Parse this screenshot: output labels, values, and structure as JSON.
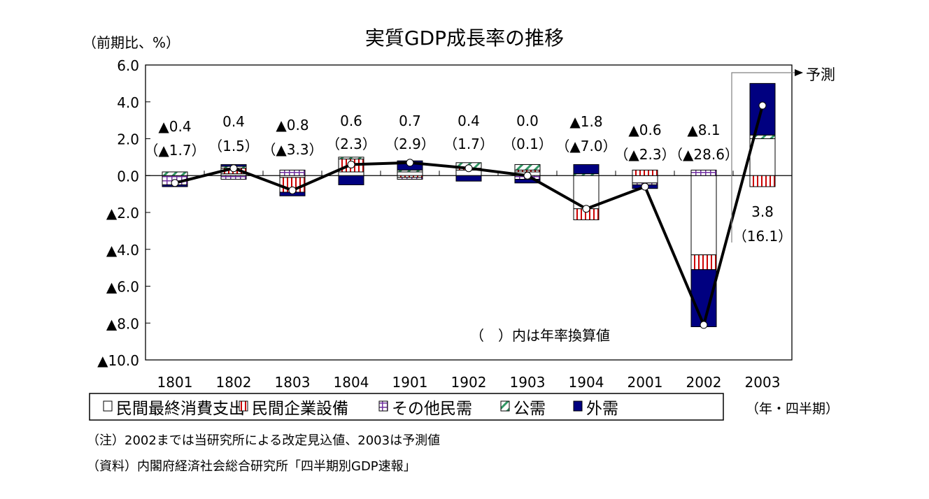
{
  "chart_data": {
    "type": "bar",
    "stacked": true,
    "title": "実質GDP成長率の推移",
    "ylabel": "（前期比、%）",
    "xlabel": "（年・四半期）",
    "ylim": [
      -10.0,
      6.0
    ],
    "ytick_values": [
      6,
      4,
      2,
      0,
      -2,
      -4,
      -6,
      -8,
      -10
    ],
    "ytick_labels": [
      "6.0",
      "4.0",
      "2.0",
      "0.0",
      "▲2.0",
      "▲4.0",
      "▲6.0",
      "▲8.0",
      "▲10.0"
    ],
    "categories": [
      "1801",
      "1802",
      "1803",
      "1804",
      "1901",
      "1902",
      "1903",
      "1904",
      "2001",
      "2002",
      "2003"
    ],
    "series": [
      {
        "name": "民間最終消費支出",
        "key": "cons",
        "color": "#ffffff",
        "values": [
          0.0,
          0.1,
          -0.1,
          0.2,
          0.2,
          0.3,
          0.2,
          -1.8,
          -0.4,
          -4.3,
          2.0
        ]
      },
      {
        "name": "民間企業設備",
        "key": "inv",
        "color": "#cc0000",
        "values": [
          0.0,
          0.3,
          -0.8,
          0.7,
          -0.1,
          0.1,
          0.1,
          -0.6,
          0.3,
          -0.8,
          -0.6
        ]
      },
      {
        "name": "その他民需",
        "key": "other",
        "color": "#7030a0",
        "values": [
          -0.5,
          -0.2,
          0.3,
          0.0,
          -0.1,
          0.0,
          -0.2,
          0.0,
          -0.1,
          0.3,
          0.0
        ]
      },
      {
        "name": "公需",
        "key": "pub",
        "color": "#339966",
        "values": [
          0.2,
          0.1,
          0.0,
          0.1,
          0.1,
          0.3,
          0.3,
          0.1,
          0.0,
          0.0,
          0.2
        ]
      },
      {
        "name": "外需",
        "key": "ext",
        "color": "#000080",
        "values": [
          -0.1,
          0.1,
          -0.2,
          -0.5,
          0.5,
          -0.3,
          -0.2,
          0.5,
          -0.2,
          -3.1,
          2.8
        ]
      }
    ],
    "line": {
      "name": "実質GDP成長率",
      "values": [
        -0.4,
        0.4,
        -0.8,
        0.6,
        0.7,
        0.4,
        0.0,
        -1.8,
        -0.6,
        -8.1,
        3.8
      ]
    },
    "data_labels": [
      {
        "q": "▲0.4",
        "a": "（▲1.7）"
      },
      {
        "q": "0.4",
        "a": "（1.5）"
      },
      {
        "q": "▲0.8",
        "a": "（▲3.3）"
      },
      {
        "q": "0.6",
        "a": "（2.3）"
      },
      {
        "q": "0.7",
        "a": "（2.9）"
      },
      {
        "q": "0.4",
        "a": "（1.7）"
      },
      {
        "q": "0.0",
        "a": "（0.1）"
      },
      {
        "q": "▲1.8",
        "a": "（▲7.0）"
      },
      {
        "q": "▲0.6",
        "a": "（▲2.3）"
      },
      {
        "q": "▲8.1",
        "a": "（▲28.6）"
      },
      {
        "q": "3.8",
        "a": "（16.1）"
      }
    ],
    "annotations": {
      "forecast": "予測",
      "annual_note": "（　）内は年率換算値"
    },
    "legend_position": "bottom"
  },
  "notes": {
    "note": "（注）2002までは当研究所による改定見込値、2003は予測値",
    "source": "（資料）内閣府経済社会総合研究所「四半期別GDP速報」"
  }
}
